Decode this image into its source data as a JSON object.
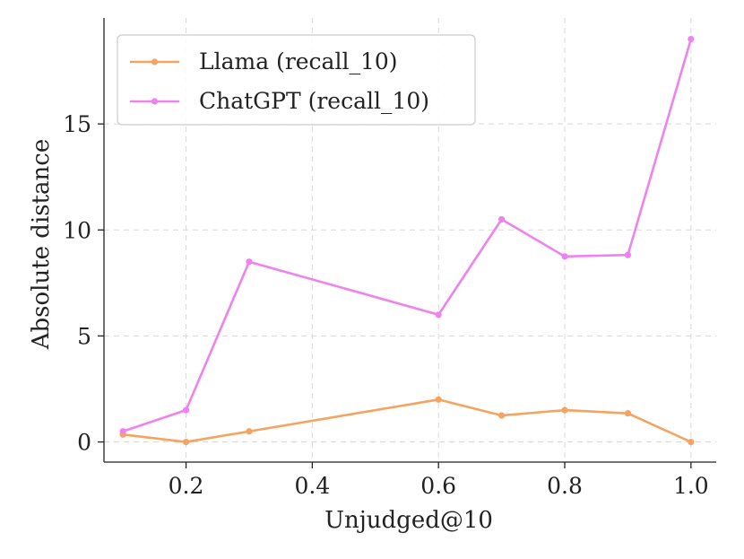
{
  "chart_data": {
    "type": "line",
    "title": "",
    "xlabel": "Unjudged@10",
    "ylabel": "Absolute distance",
    "xlim": [
      0.07,
      1.04
    ],
    "ylim": [
      -0.95,
      20.0
    ],
    "xticks": [
      0.2,
      0.4,
      0.6,
      0.8,
      1.0
    ],
    "xtick_labels": [
      "0.2",
      "0.4",
      "0.6",
      "0.8",
      "1.0"
    ],
    "yticks": [
      0,
      5,
      10,
      15
    ],
    "ytick_labels": [
      "0",
      "5",
      "10",
      "15"
    ],
    "grid": true,
    "legend_position": "top-left",
    "series": [
      {
        "name": "Llama (recall_10)",
        "color": "#f4a460",
        "x": [
          0.1,
          0.2,
          0.3,
          0.6,
          0.7,
          0.8,
          0.9,
          1.0
        ],
        "y": [
          0.35,
          0.0,
          0.5,
          2.0,
          1.25,
          1.5,
          1.35,
          0.0
        ]
      },
      {
        "name": "ChatGPT (recall_10)",
        "color": "#ee82ee",
        "x": [
          0.1,
          0.2,
          0.3,
          0.6,
          0.7,
          0.8,
          0.9,
          1.0
        ],
        "y": [
          0.5,
          1.5,
          8.5,
          6.0,
          10.5,
          8.75,
          8.82,
          19.0
        ]
      }
    ]
  }
}
